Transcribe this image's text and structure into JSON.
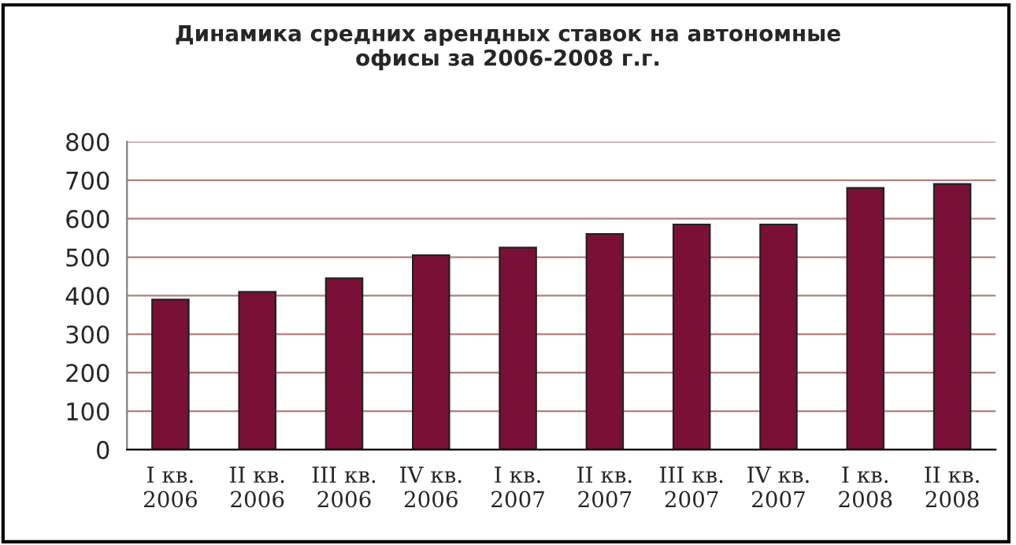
{
  "chart_data": {
    "type": "bar",
    "title": "Динамика средних арендных ставок на автономные\nофисы за 2006-2008 г.г.",
    "categories": [
      "I кв.\n2006",
      "II кв.\n2006",
      "III кв.\n2006",
      "IV кв.\n2006",
      "I кв.\n2007",
      "II кв.\n2007",
      "III кв.\n2007",
      "IV кв.\n2007",
      "I кв.\n2008",
      "II кв.\n2008"
    ],
    "values": [
      390,
      410,
      445,
      505,
      525,
      560,
      585,
      585,
      680,
      690
    ],
    "color": "#7a1038",
    "ylim": [
      0,
      800
    ],
    "yticks": [
      0,
      100,
      200,
      300,
      400,
      500,
      600,
      700,
      800
    ],
    "grid": "y"
  }
}
